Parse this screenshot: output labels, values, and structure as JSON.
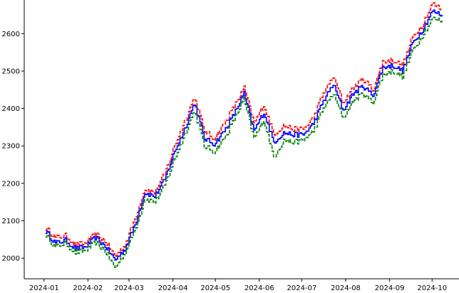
{
  "chart_data": {
    "type": "line",
    "title": "",
    "xlabel": "",
    "ylabel": "",
    "xlim": [
      "2023-12-18",
      "2024-10-20"
    ],
    "ylim": [
      1945,
      2690
    ],
    "grid": false,
    "legend": "none",
    "x_ticks": [
      "2024-01",
      "2024-02",
      "2024-03",
      "2024-04",
      "2024-05",
      "2024-06",
      "2024-07",
      "2024-08",
      "2024-09",
      "2024-10"
    ],
    "y_ticks": [
      "2000",
      "2100",
      "2200",
      "2300",
      "2400",
      "2500",
      "2600"
    ],
    "x": [
      "2024-01-02",
      "2024-01-09",
      "2024-01-16",
      "2024-01-23",
      "2024-01-30",
      "2024-02-06",
      "2024-02-13",
      "2024-02-20",
      "2024-02-27",
      "2024-03-05",
      "2024-03-12",
      "2024-03-19",
      "2024-03-26",
      "2024-04-02",
      "2024-04-09",
      "2024-04-16",
      "2024-04-23",
      "2024-04-30",
      "2024-05-07",
      "2024-05-14",
      "2024-05-21",
      "2024-05-28",
      "2024-06-04",
      "2024-06-11",
      "2024-06-18",
      "2024-06-25",
      "2024-07-02",
      "2024-07-09",
      "2024-07-16",
      "2024-07-23",
      "2024-07-30",
      "2024-08-06",
      "2024-08-13",
      "2024-08-20",
      "2024-08-27",
      "2024-09-03",
      "2024-09-10",
      "2024-09-17",
      "2024-09-24",
      "2024-10-01",
      "2024-10-08"
    ],
    "series": [
      {
        "line_style": "dashed",
        "color": "#ff0000",
        "values": [
          2080,
          2055,
          2060,
          2035,
          2040,
          2065,
          2045,
          2005,
          2035,
          2105,
          2185,
          2175,
          2225,
          2300,
          2365,
          2430,
          2340,
          2320,
          2360,
          2405,
          2455,
          2360,
          2410,
          2330,
          2355,
          2345,
          2345,
          2375,
          2440,
          2485,
          2415,
          2455,
          2480,
          2450,
          2525,
          2530,
          2515,
          2590,
          2625,
          2680,
          2665
        ]
      },
      {
        "line_style": "solid",
        "color": "#0000ff",
        "values": [
          2072,
          2040,
          2048,
          2025,
          2030,
          2055,
          2032,
          1995,
          2025,
          2090,
          2175,
          2165,
          2210,
          2285,
          2345,
          2415,
          2320,
          2305,
          2340,
          2385,
          2440,
          2340,
          2390,
          2310,
          2335,
          2330,
          2330,
          2360,
          2420,
          2465,
          2395,
          2440,
          2460,
          2435,
          2510,
          2515,
          2500,
          2575,
          2610,
          2660,
          2650
        ]
      },
      {
        "line_style": "dashed",
        "color": "#008000",
        "values": [
          2062,
          2030,
          2040,
          2015,
          2020,
          2042,
          2020,
          1975,
          2015,
          2075,
          2160,
          2150,
          2195,
          2265,
          2330,
          2395,
          2300,
          2285,
          2320,
          2370,
          2425,
          2320,
          2370,
          2270,
          2315,
          2310,
          2315,
          2340,
          2400,
          2440,
          2375,
          2420,
          2440,
          2415,
          2490,
          2500,
          2485,
          2555,
          2595,
          2640,
          2635
        ]
      }
    ]
  }
}
